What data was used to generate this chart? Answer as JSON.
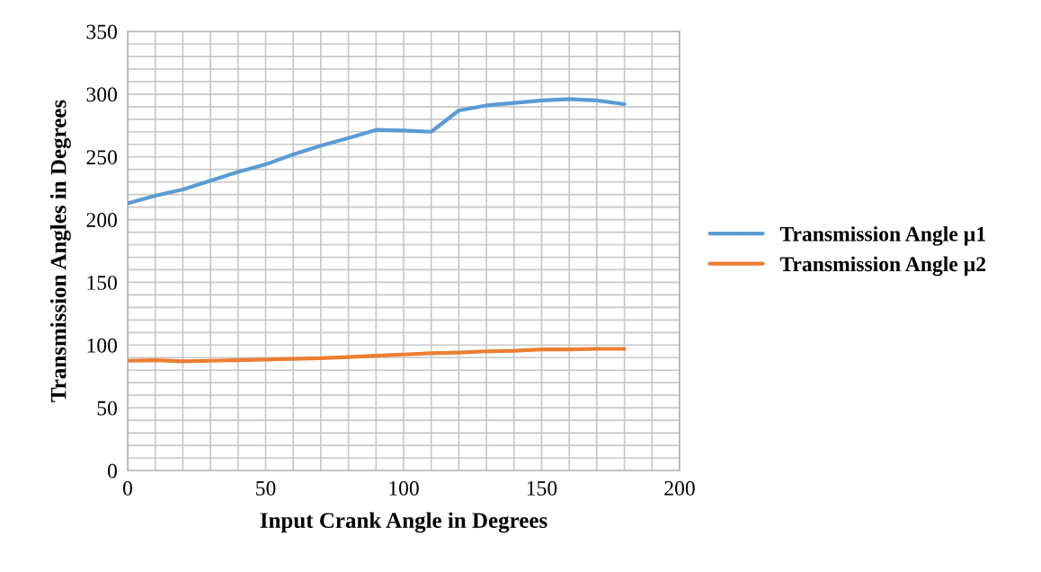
{
  "chart_data": {
    "type": "line",
    "xlabel": "Input Crank Angle in Degrees",
    "ylabel": "Transmission Angles in Degrees",
    "x": [
      0,
      10,
      20,
      30,
      40,
      50,
      60,
      70,
      80,
      90,
      100,
      110,
      120,
      130,
      140,
      150,
      160,
      170,
      180
    ],
    "series": [
      {
        "name": "Transmission Angle µ1",
        "color": "#5b9bd5",
        "values": [
          213,
          219,
          224,
          231,
          238,
          244,
          252,
          259,
          265,
          271.5,
          271,
          270,
          287,
          291,
          293,
          295,
          296,
          295,
          292
        ]
      },
      {
        "name": "Transmission Angle µ2",
        "color": "#ed7d31",
        "values": [
          87.5,
          88,
          87,
          87.5,
          88,
          88.5,
          89,
          89.5,
          90.5,
          91.5,
          92.5,
          93.5,
          94,
          95,
          95.5,
          96.5,
          96.5,
          97,
          97
        ]
      }
    ],
    "xlim": [
      0,
      200
    ],
    "ylim": [
      0,
      350
    ],
    "xticks": [
      0,
      {
        "value": 10,
        "label": null
      },
      {
        "value": 20,
        "label": null
      },
      {
        "value": 30,
        "label": null
      },
      {
        "value": 40,
        "label": null
      },
      50,
      {
        "value": 60,
        "label": null
      },
      {
        "value": 70,
        "label": null
      },
      {
        "value": 80,
        "label": null
      },
      {
        "value": 90,
        "label": null
      },
      100,
      {
        "value": 110,
        "label": null
      },
      {
        "value": 120,
        "label": null
      },
      {
        "value": 130,
        "label": null
      },
      {
        "value": 140,
        "label": null
      },
      150,
      {
        "value": 160,
        "label": null
      },
      {
        "value": 170,
        "label": null
      },
      {
        "value": 180,
        "label": null
      },
      {
        "value": 190,
        "label": null
      },
      200
    ],
    "yticks": [
      0,
      {
        "value": 10,
        "label": null
      },
      {
        "value": 20,
        "label": null
      },
      {
        "value": 30,
        "label": null
      },
      {
        "value": 40,
        "label": null
      },
      50,
      {
        "value": 60,
        "label": null
      },
      {
        "value": 70,
        "label": null
      },
      {
        "value": 80,
        "label": null
      },
      {
        "value": 90,
        "label": null
      },
      100,
      {
        "value": 110,
        "label": null
      },
      {
        "value": 120,
        "label": null
      },
      {
        "value": 130,
        "label": null
      },
      {
        "value": 140,
        "label": null
      },
      150,
      {
        "value": 160,
        "label": null
      },
      {
        "value": 170,
        "label": null
      },
      {
        "value": 180,
        "label": null
      },
      {
        "value": 190,
        "label": null
      },
      200,
      {
        "value": 210,
        "label": null
      },
      {
        "value": 220,
        "label": null
      },
      {
        "value": 230,
        "label": null
      },
      {
        "value": 240,
        "label": null
      },
      250,
      {
        "value": 260,
        "label": null
      },
      {
        "value": 270,
        "label": null
      },
      {
        "value": 280,
        "label": null
      },
      {
        "value": 290,
        "label": null
      },
      300,
      {
        "value": 310,
        "label": null
      },
      {
        "value": 320,
        "label": null
      },
      {
        "value": 330,
        "label": null
      },
      {
        "value": 340,
        "label": null
      },
      350
    ],
    "grid": true,
    "legend": "right",
    "marker": "none",
    "line_style": "solid"
  }
}
